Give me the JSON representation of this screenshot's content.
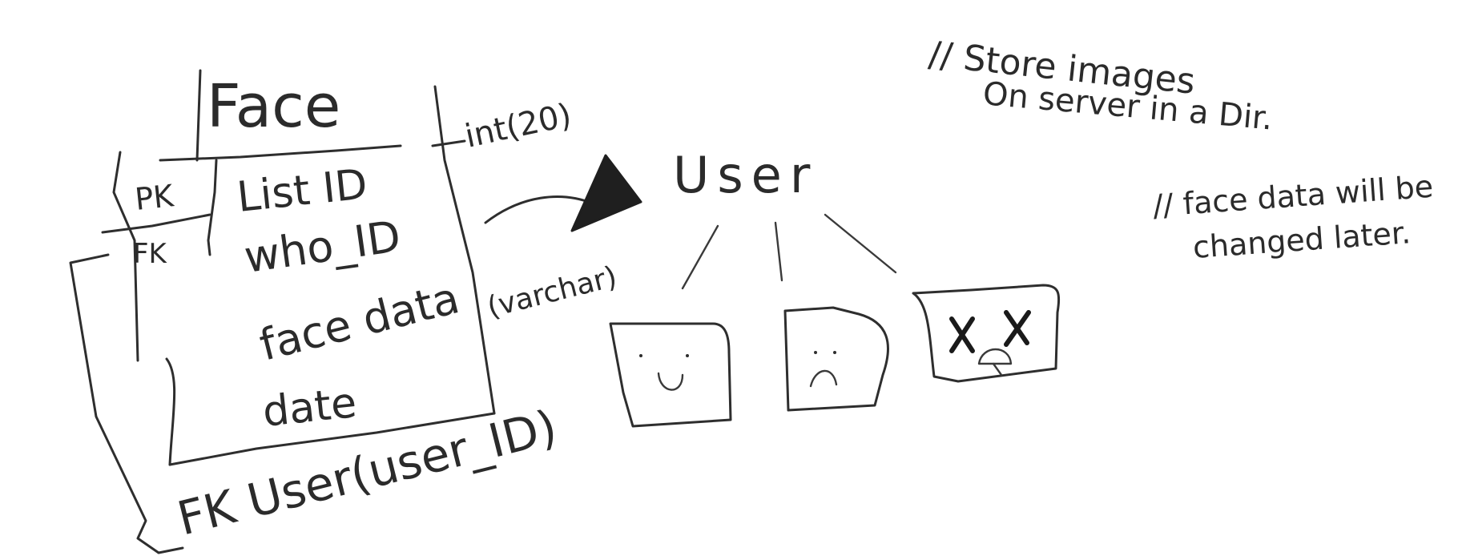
{
  "table": {
    "name": "Face",
    "keys": {
      "pk": "PK",
      "fk": "FK"
    },
    "fields": {
      "list_id": "List ID",
      "who_id": "who_ID",
      "face_data": "face data",
      "date": "date"
    },
    "types": {
      "int": "int(20)",
      "varchar": "(varchar)"
    },
    "foreign_key_note": "FK User(user_ID)"
  },
  "user": {
    "label": "User",
    "faces": [
      "happy-face",
      "sad-face",
      "dead-face"
    ]
  },
  "notes": {
    "note1_line1": "// Store images",
    "note1_line2": "On server in a Dir.",
    "note2_line1": "// face data will be",
    "note2_line2": "changed later."
  },
  "colors": {
    "ink": "#2e2e2e",
    "paper": "#ffffff"
  }
}
